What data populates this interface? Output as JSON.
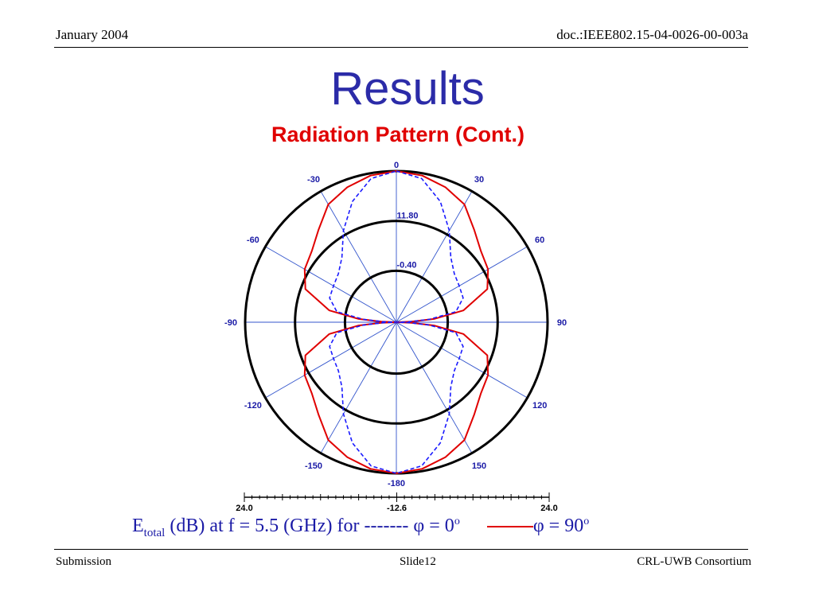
{
  "header": {
    "date": "January 2004",
    "doc_id": "doc.:IEEE802.15-04-0026-00-003a"
  },
  "slide": {
    "title": "Results",
    "subtitle": "Radiation Pattern (Cont.)"
  },
  "caption": {
    "e_main": "E",
    "e_sub": "total",
    "text": " (dB) at f = 5.5 (GHz) for ",
    "dash_sample": "-------",
    "phi0": " φ = 0",
    "phi90": "φ = 90",
    "degree": "o"
  },
  "footer": {
    "left": "Submission",
    "center": "Slide12",
    "right": "CRL-UWB Consortium"
  },
  "colors": {
    "title": "#2b2ba8",
    "subtitle": "#e00000",
    "trace": "#e00000",
    "dashed_trace": "#1a1aff",
    "axis_labels": "#1a1aa6"
  },
  "chart_data": {
    "type": "polar",
    "angle_labels": [
      "0",
      "30",
      "60",
      "90",
      "120",
      "150",
      "-180",
      "-150",
      "-120",
      "-90",
      "-60",
      "-30"
    ],
    "radial_labels": [
      "-0.40",
      "11.80"
    ],
    "scale_bar": {
      "left": "24.0",
      "center": "-12.6",
      "right": "24.0"
    },
    "series": [
      {
        "name": "φ = 90",
        "style": "solid",
        "color": "#e00000",
        "theta_deg": [
          0,
          10,
          20,
          30,
          40,
          50,
          60,
          70,
          80,
          85,
          88,
          90
        ],
        "r_frac": [
          1.0,
          0.985,
          0.95,
          0.9,
          0.8,
          0.73,
          0.7,
          0.64,
          0.45,
          0.25,
          0.1,
          0.0
        ]
      },
      {
        "name": "φ = 0",
        "style": "dashed",
        "color": "#1a1aff",
        "theta_deg": [
          0,
          10,
          20,
          30,
          40,
          50,
          60,
          70,
          80,
          85,
          88,
          90
        ],
        "r_frac": [
          1.0,
          0.965,
          0.85,
          0.7,
          0.56,
          0.5,
          0.48,
          0.47,
          0.4,
          0.22,
          0.08,
          0.0
        ]
      }
    ]
  }
}
